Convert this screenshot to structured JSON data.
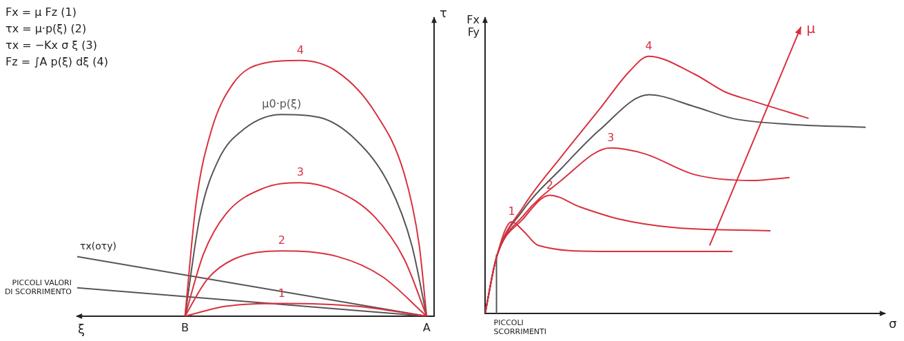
{
  "chart_data": [
    {
      "type": "line",
      "annotations": [
        "Fx = μ Fz  (1)",
        "τx = μ·p(ξ)  (2)",
        "τx = −Kx σ ξ  (3)",
        "Fz = ∫A p(ξ) dξ  (4)"
      ],
      "x_label": "ξ",
      "y_label": "τ",
      "xlim": [
        0,
        9.6
      ],
      "ylim": [
        0,
        10.5
      ],
      "tick_labels": false,
      "grid": false,
      "points": [
        {
          "label": "B",
          "x": 2.9
        },
        {
          "label": "A",
          "x": 9.4
        }
      ],
      "series": [
        {
          "name": "4",
          "color": "#d9303e",
          "x": [
            2.9,
            3.2,
            3.6,
            4.2,
            5,
            6,
            7,
            8,
            8.8,
            9.2,
            9.4
          ],
          "values": [
            0,
            4,
            6.5,
            8.2,
            8.9,
            9,
            8.6,
            7.2,
            5,
            2.5,
            0
          ]
        },
        {
          "name": "μ0·p(ξ)",
          "color": "#555555",
          "x": [
            2.9,
            3.3,
            3.8,
            4.5,
            5.5,
            6.5,
            7.5,
            8.4,
            9,
            9.4
          ],
          "values": [
            0,
            3.5,
            5.5,
            6.6,
            7.1,
            7,
            6.2,
            4.6,
            2.5,
            0
          ]
        },
        {
          "name": "3",
          "color": "#d9303e",
          "x": [
            2.9,
            3.4,
            4,
            5,
            6,
            7,
            8,
            8.8,
            9.4
          ],
          "values": [
            0,
            2.2,
            3.6,
            4.5,
            4.7,
            4.4,
            3.5,
            2,
            0
          ]
        },
        {
          "name": "2",
          "color": "#d9303e",
          "x": [
            2.9,
            3.5,
            4.2,
            5.5,
            7,
            8.2,
            9.4
          ],
          "values": [
            0,
            1.3,
            2,
            2.3,
            2.1,
            1.4,
            0
          ]
        },
        {
          "name": "1",
          "color": "#d9303e",
          "x": [
            2.9,
            4,
            5.5,
            7.5,
            9.4
          ],
          "values": [
            0,
            0.35,
            0.45,
            0.35,
            0
          ]
        },
        {
          "name": "τx(oτy)",
          "color": "#555555",
          "x": [
            0,
            9.4
          ],
          "values": [
            2.1,
            0
          ]
        },
        {
          "name": "PICCOLI VALORI DI SCORRIMENTO",
          "color": "#555555",
          "x": [
            0,
            9.4
          ],
          "values": [
            1,
            0
          ]
        }
      ]
    },
    {
      "type": "line",
      "x_label": "σ",
      "y_label": "Fx Fy",
      "xlim": [
        0,
        10.5
      ],
      "ylim": [
        0,
        10
      ],
      "tick_labels": false,
      "grid": false,
      "series": [
        {
          "name": "4",
          "color": "#d9303e",
          "x": [
            0,
            0.3,
            1,
            2,
            3,
            3.8,
            4.3,
            5.5,
            6.3,
            7,
            8,
            8.5
          ],
          "values": [
            0,
            1.9,
            3.6,
            5.3,
            6.9,
            8.2,
            8.7,
            8.1,
            7.5,
            7.2,
            6.8,
            6.6
          ]
        },
        {
          "color": "#555555",
          "x": [
            0,
            0.3,
            1,
            2,
            3,
            4.3,
            5.5,
            6.5,
            8,
            10
          ],
          "values": [
            0,
            1.9,
            3.5,
            4.9,
            6.2,
            7.4,
            7,
            6.6,
            6.4,
            6.3
          ]
        },
        {
          "name": "3",
          "color": "#d9303e",
          "x": [
            0,
            0.3,
            1,
            2,
            3.3,
            4.2,
            5.5,
            7,
            8
          ],
          "values": [
            0,
            1.9,
            3.3,
            4.5,
            5.6,
            5.4,
            4.7,
            4.5,
            4.6
          ]
        },
        {
          "name": "2",
          "color": "#d9303e",
          "x": [
            0,
            0.3,
            1,
            1.7,
            2.5,
            3.5,
            5,
            7.5
          ],
          "values": [
            0,
            1.9,
            3.2,
            4,
            3.6,
            3.2,
            2.9,
            2.8
          ]
        },
        {
          "name": "1",
          "color": "#d9303e",
          "x": [
            0,
            0.3,
            0.7,
            1,
            1.4,
            3,
            6.5
          ],
          "values": [
            0,
            1.9,
            3.1,
            2.8,
            2.3,
            2.1,
            2.1
          ]
        },
        {
          "name": "PICCOLI SCORRIMENTI",
          "color": "#555555",
          "x": [
            0.3,
            0.3
          ],
          "values": [
            0,
            2
          ]
        },
        {
          "name": "μ",
          "color": "#d9303e",
          "marker": "arrow",
          "x": [
            5.9,
            8.3
          ],
          "values": [
            2.3,
            9.7
          ]
        }
      ]
    }
  ]
}
